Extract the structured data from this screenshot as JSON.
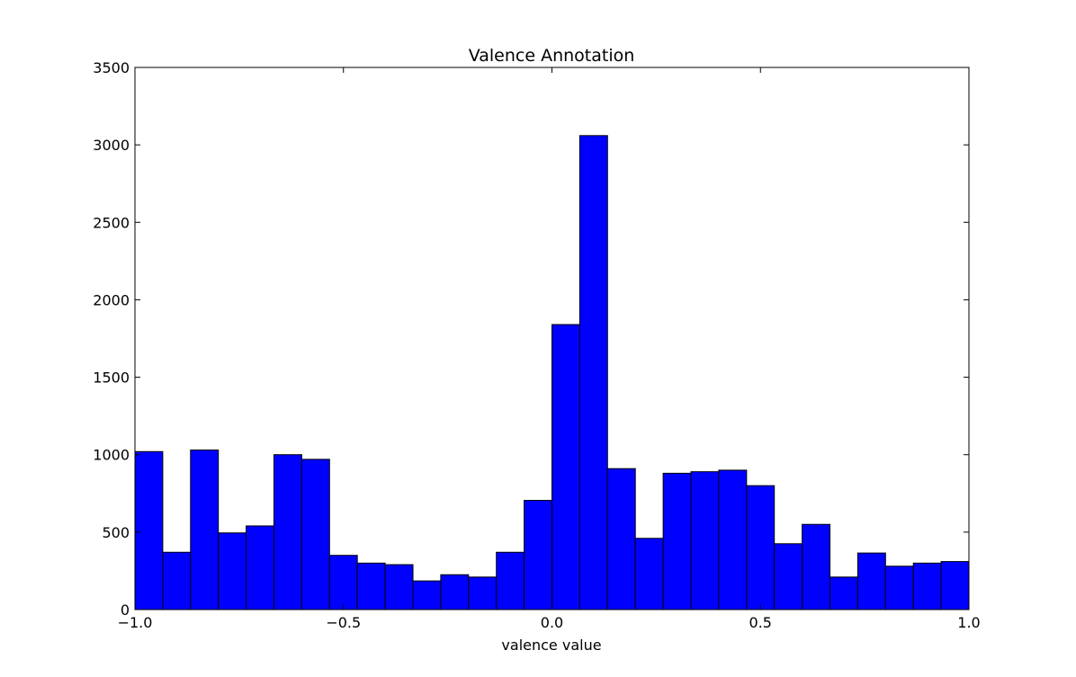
{
  "chart_data": {
    "type": "bar",
    "title": "Valence Annotation",
    "xlabel": "valence value",
    "ylabel": "",
    "xlim": [
      -1.0,
      1.0
    ],
    "ylim": [
      0,
      3500
    ],
    "grid": false,
    "bar_color": "#0000ff",
    "edge_color": "#000000",
    "bin_edges": [
      -1.0,
      -0.9333,
      -0.8667,
      -0.8,
      -0.7333,
      -0.6667,
      -0.6,
      -0.5333,
      -0.4667,
      -0.4,
      -0.3333,
      -0.2667,
      -0.2,
      -0.1333,
      -0.0667,
      0.0,
      0.0667,
      0.1333,
      0.2,
      0.2667,
      0.3333,
      0.4,
      0.4667,
      0.5333,
      0.6,
      0.6667,
      0.7333,
      0.8,
      0.8667,
      0.9333,
      1.0
    ],
    "values": [
      1020,
      370,
      1030,
      495,
      540,
      1000,
      970,
      350,
      300,
      290,
      185,
      225,
      210,
      370,
      705,
      1840,
      3060,
      910,
      460,
      880,
      890,
      900,
      800,
      425,
      550,
      210,
      365,
      280,
      300,
      310
    ],
    "x_ticks": [
      -1.0,
      -0.5,
      0.0,
      0.5,
      1.0
    ],
    "x_tick_labels": [
      "−1.0",
      "−0.5",
      "0.0",
      "0.5",
      "1.0"
    ],
    "y_ticks": [
      0,
      500,
      1000,
      1500,
      2000,
      2500,
      3000,
      3500
    ],
    "y_tick_labels": [
      "0",
      "500",
      "1000",
      "1500",
      "2000",
      "2500",
      "3000",
      "3500"
    ]
  }
}
